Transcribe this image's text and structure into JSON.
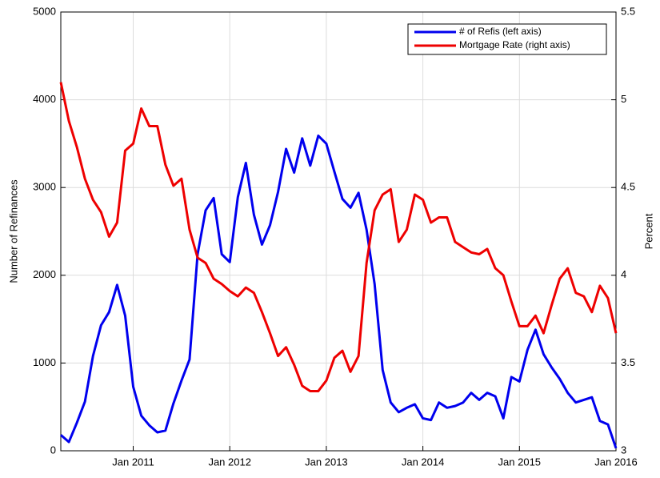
{
  "chart_data": {
    "type": "line",
    "x": [
      "2010-04",
      "2010-05",
      "2010-06",
      "2010-07",
      "2010-08",
      "2010-09",
      "2010-10",
      "2010-11",
      "2010-12",
      "2011-01",
      "2011-02",
      "2011-03",
      "2011-04",
      "2011-05",
      "2011-06",
      "2011-07",
      "2011-08",
      "2011-09",
      "2011-10",
      "2011-11",
      "2011-12",
      "2012-01",
      "2012-02",
      "2012-03",
      "2012-04",
      "2012-05",
      "2012-06",
      "2012-07",
      "2012-08",
      "2012-09",
      "2012-10",
      "2012-11",
      "2012-12",
      "2013-01",
      "2013-02",
      "2013-03",
      "2013-04",
      "2013-05",
      "2013-06",
      "2013-07",
      "2013-08",
      "2013-09",
      "2013-10",
      "2013-11",
      "2013-12",
      "2014-01",
      "2014-02",
      "2014-03",
      "2014-04",
      "2014-05",
      "2014-06",
      "2014-07",
      "2014-08",
      "2014-09",
      "2014-10",
      "2014-11",
      "2014-12",
      "2015-01",
      "2015-02",
      "2015-03",
      "2015-04",
      "2015-05",
      "2015-06",
      "2015-07",
      "2015-08",
      "2015-09",
      "2015-10",
      "2015-11",
      "2015-12",
      "2016-01"
    ],
    "xticks": [
      {
        "value": "2011-01",
        "label": "Jan 2011"
      },
      {
        "value": "2012-01",
        "label": "Jan 2012"
      },
      {
        "value": "2013-01",
        "label": "Jan 2013"
      },
      {
        "value": "2014-01",
        "label": "Jan 2014"
      },
      {
        "value": "2015-01",
        "label": "Jan 2015"
      },
      {
        "value": "2016-01",
        "label": "Jan 2016"
      }
    ],
    "ylabel": "Number of Refinances",
    "y2label": "Percent",
    "ylim": [
      0,
      5000
    ],
    "yticks": [
      0,
      1000,
      2000,
      3000,
      4000,
      5000
    ],
    "y2lim": [
      3,
      5.5
    ],
    "y2ticks": [
      3,
      3.5,
      4,
      4.5,
      5,
      5.5
    ],
    "grid": true,
    "legend": "upper right",
    "series": [
      {
        "name": "# of Refis (left axis)",
        "color": "#0000ee",
        "values": [
          180,
          100,
          320,
          560,
          1080,
          1430,
          1580,
          1890,
          1540,
          730,
          400,
          290,
          210,
          230,
          540,
          800,
          1040,
          2240,
          2740,
          2880,
          2240,
          2150,
          2890,
          3280,
          2690,
          2350,
          2570,
          2950,
          3440,
          3170,
          3560,
          3250,
          3590,
          3500,
          3180,
          2870,
          2770,
          2940,
          2520,
          1900,
          920,
          550,
          440,
          490,
          530,
          370,
          350,
          550,
          490,
          510,
          550,
          660,
          580,
          660,
          620,
          370,
          840,
          790,
          1150,
          1380,
          1100,
          950,
          820,
          660,
          550,
          580,
          610,
          340,
          300,
          30
        ]
      },
      {
        "name": "Mortgage Rate (right axis)",
        "color": "#ee0000",
        "axis": "y2",
        "values": [
          5.1,
          4.88,
          4.73,
          4.55,
          4.43,
          4.36,
          4.22,
          4.3,
          4.71,
          4.75,
          4.95,
          4.85,
          4.85,
          4.63,
          4.51,
          4.55,
          4.26,
          4.1,
          4.07,
          3.98,
          3.95,
          3.91,
          3.88,
          3.93,
          3.9,
          3.79,
          3.67,
          3.54,
          3.59,
          3.49,
          3.37,
          3.34,
          3.34,
          3.4,
          3.53,
          3.57,
          3.45,
          3.54,
          4.07,
          4.37,
          4.46,
          4.49,
          4.19,
          4.26,
          4.46,
          4.43,
          4.3,
          4.33,
          4.33,
          4.19,
          4.16,
          4.13,
          4.12,
          4.15,
          4.04,
          4.0,
          3.85,
          3.71,
          3.71,
          3.77,
          3.67,
          3.83,
          3.98,
          4.04,
          3.9,
          3.88,
          3.79,
          3.94,
          3.87,
          3.67
        ]
      }
    ]
  }
}
